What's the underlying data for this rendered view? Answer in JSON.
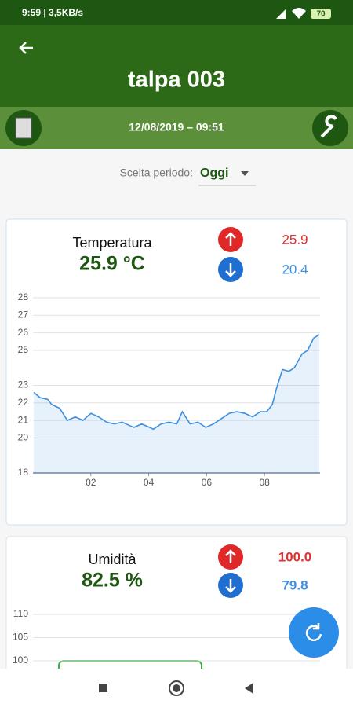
{
  "status_bar": {
    "time": "9:59 | 3,5KB/s",
    "battery": "70"
  },
  "header": {
    "title": "talpa 003",
    "timestamp": "12/08/2019 – 09:51"
  },
  "period": {
    "label": "Scelta periodo:",
    "value": "Oggi"
  },
  "cards": [
    {
      "title": "Temperatura",
      "current": "25.9 °C",
      "max": "25.9",
      "min": "20.4",
      "chart": {
        "type": "line",
        "color": "#3f8fe0",
        "grid": true,
        "x": [
          0.03,
          0.24,
          0.51,
          0.65,
          0.92,
          1.19,
          1.46,
          1.73,
          2.0,
          2.27,
          2.54,
          2.81,
          3.08,
          3.35,
          3.49,
          3.76,
          4.03,
          4.16,
          4.43,
          4.7,
          4.97,
          5.16,
          5.43,
          5.7,
          5.97,
          6.24,
          6.51,
          6.78,
          7.05,
          7.32,
          7.59,
          7.86,
          8.08,
          8.27,
          8.41,
          8.62,
          8.84,
          9.03,
          9.3,
          9.49,
          9.7,
          9.89
        ],
        "y": [
          22.6,
          22.3,
          22.2,
          21.9,
          21.7,
          21.0,
          21.2,
          21.0,
          21.4,
          21.2,
          20.9,
          20.8,
          20.9,
          20.7,
          20.6,
          20.8,
          20.6,
          20.5,
          20.8,
          20.9,
          20.8,
          21.5,
          20.8,
          20.9,
          20.6,
          20.8,
          21.1,
          21.4,
          21.5,
          21.4,
          21.2,
          21.5,
          21.5,
          21.9,
          22.8,
          23.9,
          23.8,
          24.0,
          24.8,
          25.0,
          25.7,
          25.9
        ],
        "xlim": [
          0,
          9.92
        ],
        "ylim": [
          18,
          28
        ],
        "xticks": [
          {
            "value": 2,
            "label": "02"
          },
          {
            "value": 4,
            "label": "04"
          },
          {
            "value": 6,
            "label": "06"
          },
          {
            "value": 8,
            "label": "08"
          }
        ],
        "yticks": [
          18,
          20,
          21,
          22,
          23,
          25,
          26,
          27,
          28
        ]
      }
    },
    {
      "title": "Umidità",
      "current": "82.5 %",
      "max": "100.0",
      "min": "79.8",
      "chart": {
        "type": "line",
        "grid": true,
        "yticks": [
          110,
          105,
          100
        ]
      }
    }
  ]
}
